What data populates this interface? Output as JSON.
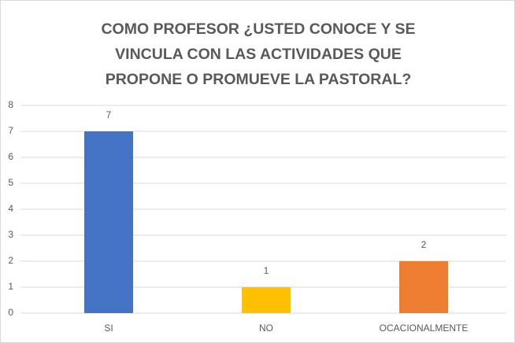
{
  "chart_data": {
    "type": "bar",
    "title": "COMO PROFESOR ¿USTED CONOCE Y SE VINCULA CON LAS ACTIVIDADES QUE PROPONE O PROMUEVE LA PASTORAL?",
    "categories": [
      "SI",
      "NO",
      "OCACIONALMENTE"
    ],
    "values": [
      7,
      1,
      2
    ],
    "colors": [
      "#4472c4",
      "#ffc000",
      "#ed7d31"
    ],
    "ylim": [
      0,
      8
    ],
    "yticks": [
      0,
      1,
      2,
      3,
      4,
      5,
      6,
      7,
      8
    ],
    "grid": true
  }
}
